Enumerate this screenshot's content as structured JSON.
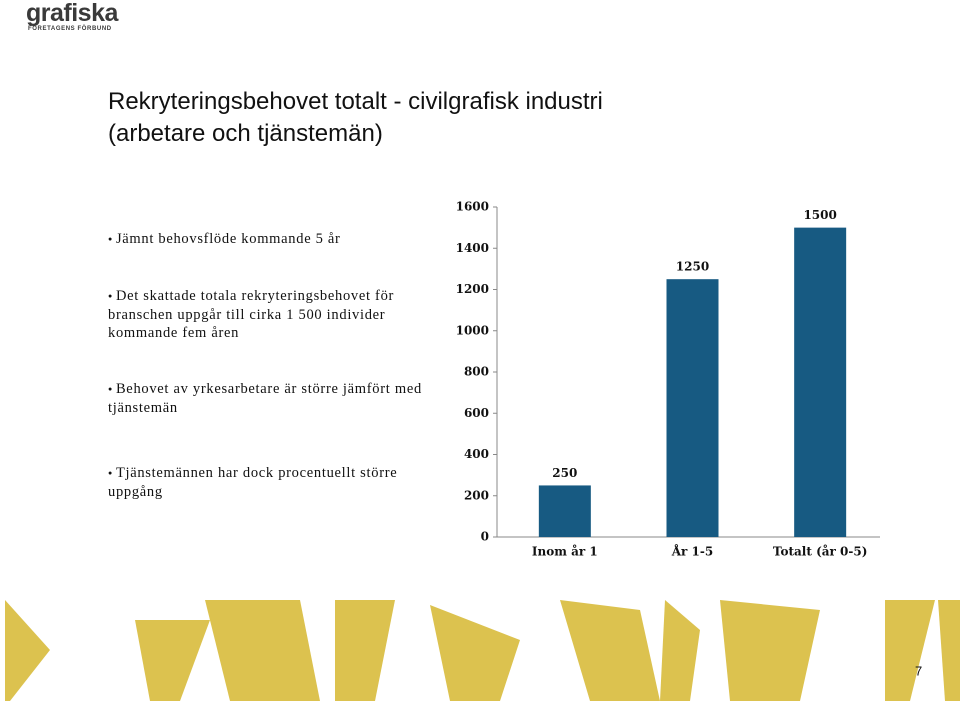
{
  "logo": {
    "name": "grafiska",
    "subtitle": "FÖRETAGENS FÖRBUND"
  },
  "title": [
    "Rekryteringsbehovet totalt - civilgrafisk industri",
    "(arbetare och tjänstemän)"
  ],
  "bullets": [
    "Jämnt behovsflöde kommande 5 år",
    "Det skattade totala rekryteringsbehovet för branschen uppgår till cirka 1 500 individer kommande fem åren",
    "Behovet av yrkesarbetare är större jämfört med tjänstemän",
    "Tjänstemännen har dock procentuellt större uppgång"
  ],
  "page_number": "7",
  "chart_data": {
    "type": "bar",
    "categories": [
      "Inom år 1",
      "År 1-5",
      "Totalt (år 0-5)"
    ],
    "values": [
      250,
      1250,
      1500
    ],
    "color": "#175a82",
    "ylim": [
      0,
      1600
    ],
    "yticks": [
      0,
      200,
      400,
      600,
      800,
      1000,
      1200,
      1400,
      1600
    ],
    "grid": false
  }
}
